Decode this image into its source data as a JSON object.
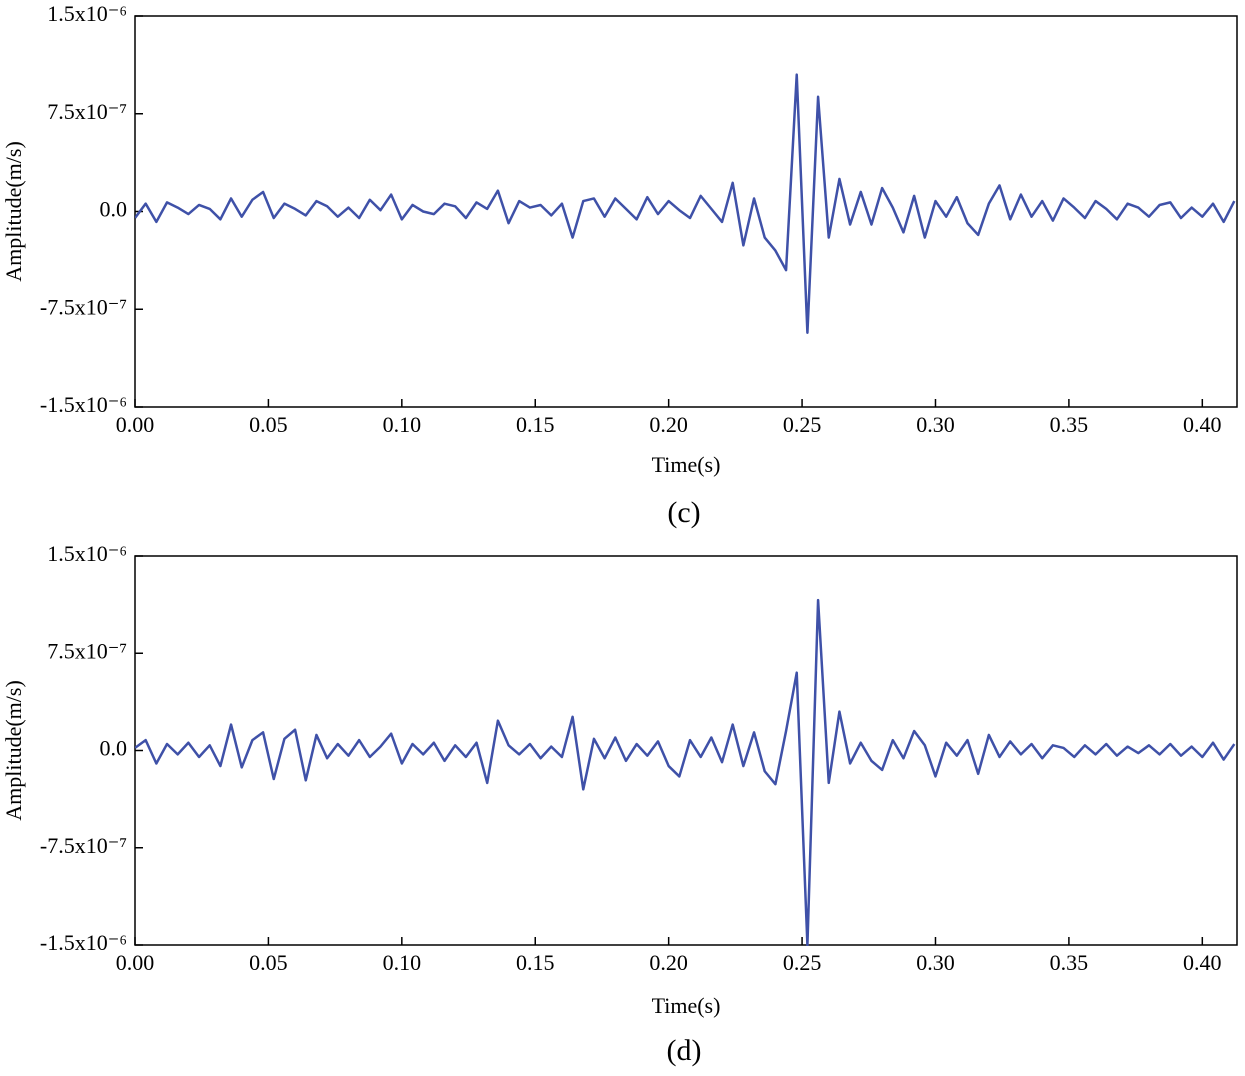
{
  "chart_data": [
    {
      "type": "line",
      "caption": "(c)",
      "xlabel": "Time(s)",
      "ylabel": "Amplitude(m/s)",
      "xlim": [
        0,
        0.413
      ],
      "ylim": [
        -1.5e-06,
        1.5e-06
      ],
      "xticks": [
        {
          "value": 0,
          "label": "0.00"
        },
        {
          "value": 0.05,
          "label": "0.05"
        },
        {
          "value": 0.1,
          "label": "0.10"
        },
        {
          "value": 0.15,
          "label": "0.15"
        },
        {
          "value": 0.2,
          "label": "0.20"
        },
        {
          "value": 0.25,
          "label": "0.25"
        },
        {
          "value": 0.3,
          "label": "0.30"
        },
        {
          "value": 0.35,
          "label": "0.35"
        },
        {
          "value": 0.4,
          "label": "0.40"
        }
      ],
      "yticks": [
        {
          "value": -1.5e-06,
          "label": "-1.5x10⁻⁶"
        },
        {
          "value": -7.5e-07,
          "label": "-7.5x10⁻⁷"
        },
        {
          "value": 0,
          "label": "0.0"
        },
        {
          "value": 7.5e-07,
          "label": "7.5x10⁻⁷"
        },
        {
          "value": 1.5e-06,
          "label": "1.5x10⁻⁶"
        }
      ],
      "x": [
        0,
        0.004,
        0.008,
        0.012,
        0.016,
        0.02,
        0.024,
        0.028,
        0.032,
        0.036,
        0.04,
        0.044,
        0.048,
        0.052,
        0.056,
        0.06,
        0.064,
        0.068,
        0.072,
        0.076,
        0.08,
        0.084,
        0.088,
        0.092,
        0.096,
        0.1,
        0.104,
        0.108,
        0.112,
        0.116,
        0.12,
        0.124,
        0.128,
        0.132,
        0.136,
        0.14,
        0.144,
        0.148,
        0.152,
        0.156,
        0.16,
        0.164,
        0.168,
        0.172,
        0.176,
        0.18,
        0.184,
        0.188,
        0.192,
        0.196,
        0.2,
        0.204,
        0.208,
        0.212,
        0.216,
        0.22,
        0.224,
        0.228,
        0.232,
        0.236,
        0.24,
        0.244,
        0.248,
        0.252,
        0.256,
        0.26,
        0.264,
        0.268,
        0.272,
        0.276,
        0.28,
        0.284,
        0.288,
        0.292,
        0.296,
        0.3,
        0.304,
        0.308,
        0.312,
        0.316,
        0.32,
        0.324,
        0.328,
        0.332,
        0.336,
        0.34,
        0.344,
        0.348,
        0.352,
        0.356,
        0.36,
        0.364,
        0.368,
        0.372,
        0.376,
        0.38,
        0.384,
        0.388,
        0.392,
        0.396,
        0.4,
        0.404,
        0.408,
        0.412
      ],
      "series": [
        {
          "color": "#3f51a8",
          "values": [
            -5e-08,
            6e-08,
            -8e-08,
            7e-08,
            3e-08,
            -2e-08,
            5e-08,
            2e-08,
            -6e-08,
            1e-07,
            -4e-08,
            9e-08,
            1.5e-07,
            -5e-08,
            6e-08,
            2e-08,
            -3e-08,
            8e-08,
            4e-08,
            -4e-08,
            3e-08,
            -5e-08,
            9e-08,
            1e-08,
            1.3e-07,
            -6e-08,
            5e-08,
            0,
            -2e-08,
            6e-08,
            4e-08,
            -5e-08,
            7e-08,
            2e-08,
            1.6e-07,
            -9e-08,
            8e-08,
            3e-08,
            5e-08,
            -3e-08,
            6e-08,
            -2e-07,
            8e-08,
            1e-07,
            -4e-08,
            1e-07,
            2e-08,
            -6e-08,
            1.1e-07,
            -2e-08,
            8e-08,
            1e-08,
            -5e-08,
            1.2e-07,
            2e-08,
            -8e-08,
            2.2e-07,
            -2.6e-07,
            1e-07,
            -2e-07,
            -3e-07,
            -4.5e-07,
            1.05e-06,
            -9.3e-07,
            8.8e-07,
            -2e-07,
            2.5e-07,
            -1e-07,
            1.5e-07,
            -1e-07,
            1.8e-07,
            3e-08,
            -1.6e-07,
            1.2e-07,
            -2e-07,
            8e-08,
            -4e-08,
            1.1e-07,
            -9e-08,
            -1.8e-07,
            6e-08,
            2e-07,
            -6e-08,
            1.3e-07,
            -4e-08,
            8e-08,
            -7e-08,
            1e-07,
            3e-08,
            -5e-08,
            8e-08,
            2e-08,
            -6e-08,
            6e-08,
            3e-08,
            -4e-08,
            5e-08,
            7e-08,
            -5e-08,
            3e-08,
            -4e-08,
            6e-08,
            -8e-08,
            8e-08
          ]
        }
      ]
    },
    {
      "type": "line",
      "caption": "(d)",
      "xlabel": "Time(s)",
      "ylabel": "Amplitude(m/s)",
      "xlim": [
        0,
        0.413
      ],
      "ylim": [
        -1.5e-06,
        1.5e-06
      ],
      "xticks": [
        {
          "value": 0,
          "label": "0.00"
        },
        {
          "value": 0.05,
          "label": "0.05"
        },
        {
          "value": 0.1,
          "label": "0.10"
        },
        {
          "value": 0.15,
          "label": "0.15"
        },
        {
          "value": 0.2,
          "label": "0.20"
        },
        {
          "value": 0.25,
          "label": "0.25"
        },
        {
          "value": 0.3,
          "label": "0.30"
        },
        {
          "value": 0.35,
          "label": "0.35"
        },
        {
          "value": 0.4,
          "label": "0.40"
        }
      ],
      "yticks": [
        {
          "value": -1.5e-06,
          "label": "-1.5x10⁻⁶"
        },
        {
          "value": -7.5e-07,
          "label": "-7.5x10⁻⁷"
        },
        {
          "value": 0,
          "label": "0.0"
        },
        {
          "value": 7.5e-07,
          "label": "7.5x10⁻⁷"
        },
        {
          "value": 1.5e-06,
          "label": "1.5x10⁻⁶"
        }
      ],
      "x": [
        0,
        0.004,
        0.008,
        0.012,
        0.016,
        0.02,
        0.024,
        0.028,
        0.032,
        0.036,
        0.04,
        0.044,
        0.048,
        0.052,
        0.056,
        0.06,
        0.064,
        0.068,
        0.072,
        0.076,
        0.08,
        0.084,
        0.088,
        0.092,
        0.096,
        0.1,
        0.104,
        0.108,
        0.112,
        0.116,
        0.12,
        0.124,
        0.128,
        0.132,
        0.136,
        0.14,
        0.144,
        0.148,
        0.152,
        0.156,
        0.16,
        0.164,
        0.168,
        0.172,
        0.176,
        0.18,
        0.184,
        0.188,
        0.192,
        0.196,
        0.2,
        0.204,
        0.208,
        0.212,
        0.216,
        0.22,
        0.224,
        0.228,
        0.232,
        0.236,
        0.24,
        0.244,
        0.248,
        0.252,
        0.256,
        0.26,
        0.264,
        0.268,
        0.272,
        0.276,
        0.28,
        0.284,
        0.288,
        0.292,
        0.296,
        0.3,
        0.304,
        0.308,
        0.312,
        0.316,
        0.32,
        0.324,
        0.328,
        0.332,
        0.336,
        0.34,
        0.344,
        0.348,
        0.352,
        0.356,
        0.36,
        0.364,
        0.368,
        0.372,
        0.376,
        0.38,
        0.384,
        0.388,
        0.392,
        0.396,
        0.4,
        0.404,
        0.408,
        0.412
      ],
      "series": [
        {
          "color": "#3f51a8",
          "values": [
            2e-08,
            8e-08,
            -1e-07,
            5e-08,
            -3e-08,
            6e-08,
            -5e-08,
            4e-08,
            -1.2e-07,
            2e-07,
            -1.3e-07,
            8e-08,
            1.4e-07,
            -2.2e-07,
            9e-08,
            1.6e-07,
            -2.3e-07,
            1.2e-07,
            -6e-08,
            5e-08,
            -4e-08,
            8e-08,
            -5e-08,
            3e-08,
            1.3e-07,
            -1e-07,
            5e-08,
            -3e-08,
            6e-08,
            -8e-08,
            4e-08,
            -5e-08,
            6e-08,
            -2.5e-07,
            2.3e-07,
            4e-08,
            -3e-08,
            5e-08,
            -6e-08,
            3e-08,
            -5e-08,
            2.6e-07,
            -3e-07,
            9e-08,
            -6e-08,
            1e-07,
            -8e-08,
            5e-08,
            -4e-08,
            7e-08,
            -1.2e-07,
            -2e-07,
            8e-08,
            -5e-08,
            1e-07,
            -9e-08,
            2e-07,
            -1.2e-07,
            1.4e-07,
            -1.6e-07,
            -2.6e-07,
            1.5e-07,
            6e-07,
            -1.5e-06,
            1.16e-06,
            -2.5e-07,
            3e-07,
            -1e-07,
            6e-08,
            -8e-08,
            -1.5e-07,
            8e-08,
            -6e-08,
            1.5e-07,
            4e-08,
            -2e-07,
            6e-08,
            -4e-08,
            8e-08,
            -1.8e-07,
            1.2e-07,
            -5e-08,
            7e-08,
            -3e-08,
            5e-08,
            -6e-08,
            4e-08,
            2e-08,
            -5e-08,
            4e-08,
            -3e-08,
            5e-08,
            -4e-08,
            3e-08,
            -2e-08,
            4e-08,
            -3e-08,
            5e-08,
            -4e-08,
            3e-08,
            -5e-08,
            6e-08,
            -7e-08,
            5e-08
          ]
        }
      ]
    }
  ]
}
